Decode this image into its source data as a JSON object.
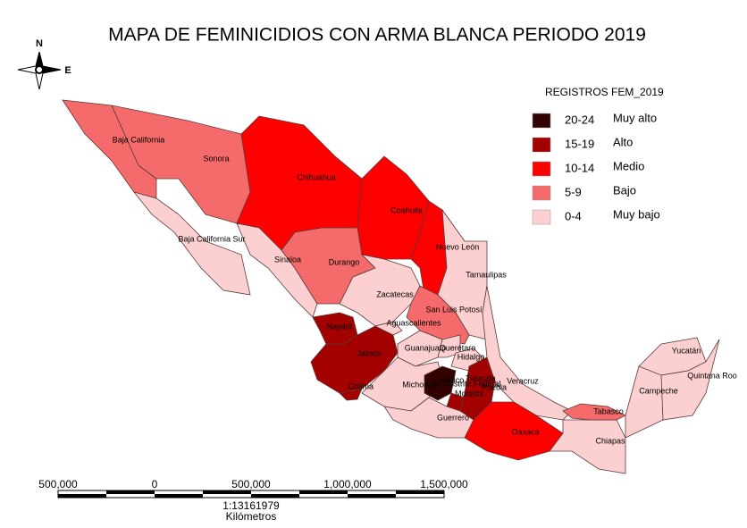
{
  "title": "MAPA  DE FEMINICIDIOS CON ARMA BLANCA PERIODO 2019",
  "compass": {
    "north": "N",
    "east": "E"
  },
  "legend": {
    "title": "REGISTROS FEM_2019",
    "items": [
      {
        "range": "20-24",
        "label": "Muy alto",
        "color": "#330000"
      },
      {
        "range": "15-19",
        "label": "Alto",
        "color": "#a30000"
      },
      {
        "range": "10-14",
        "label": "Medio",
        "color": "#ff0000"
      },
      {
        "range": "5-9",
        "label": "Bajo",
        "color": "#f56b6b"
      },
      {
        "range": "0-4",
        "label": "Muy bajo",
        "color": "#fcd0d0"
      }
    ]
  },
  "states": [
    {
      "name": "Baja California",
      "color": "#f56b6b"
    },
    {
      "name": "Baja California Sur",
      "color": "#fcd0d0"
    },
    {
      "name": "Sonora",
      "color": "#f56b6b"
    },
    {
      "name": "Chihuahua",
      "color": "#ff0000"
    },
    {
      "name": "Coahuila",
      "color": "#ff0000"
    },
    {
      "name": "Nuevo León",
      "color": "#ff0000"
    },
    {
      "name": "Tamaulipas",
      "color": "#fcd0d0"
    },
    {
      "name": "Sinaloa",
      "color": "#fcd0d0"
    },
    {
      "name": "Durango",
      "color": "#f56b6b"
    },
    {
      "name": "Zacatecas",
      "color": "#fcd0d0"
    },
    {
      "name": "San Luis Potosí",
      "color": "#f56b6b"
    },
    {
      "name": "Nayarit",
      "color": "#a30000"
    },
    {
      "name": "Jalisco",
      "color": "#a30000"
    },
    {
      "name": "Aguascalientes",
      "color": "#fcd0d0"
    },
    {
      "name": "Colima",
      "color": "#a30000"
    },
    {
      "name": "Guanajuato",
      "color": "#fcd0d0"
    },
    {
      "name": "Querétaro",
      "color": "#fcd0d0"
    },
    {
      "name": "Hidalgo",
      "color": "#fcd0d0"
    },
    {
      "name": "Michoacán",
      "color": "#fcd0d0"
    },
    {
      "name": "México",
      "color": "#330000"
    },
    {
      "name": "Morelos",
      "color": "#a30000"
    },
    {
      "name": "Puebla",
      "color": "#a30000"
    },
    {
      "name": "Guerrero",
      "color": "#fcd0d0"
    },
    {
      "name": "Veracruz",
      "color": "#fcd0d0"
    },
    {
      "name": "Oaxaca",
      "color": "#ff0000"
    },
    {
      "name": "Chiapas",
      "color": "#fcd0d0"
    },
    {
      "name": "Tabasco",
      "color": "#f56b6b"
    },
    {
      "name": "Campeche",
      "color": "#fcd0d0"
    },
    {
      "name": "Yucatán",
      "color": "#fcd0d0"
    },
    {
      "name": "Quintana Roo",
      "color": "#fcd0d0"
    }
  ],
  "extra_labels": [
    "Tlaxcala",
    "Distrito Federal"
  ],
  "scale_bar": {
    "labels": [
      "500,000",
      "0",
      "500,000",
      "1,000,000",
      "1,500,000"
    ],
    "ratio": "1:13161979",
    "units": "Kilómetros"
  }
}
